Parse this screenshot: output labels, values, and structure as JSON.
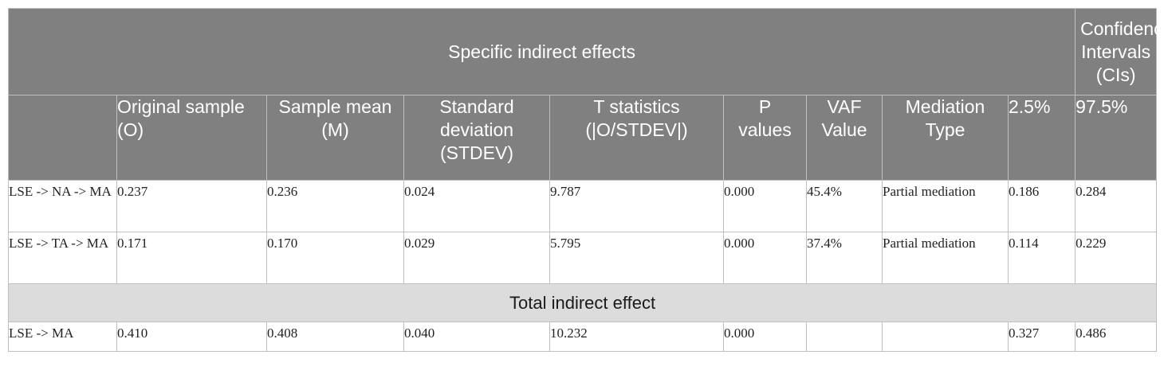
{
  "table": {
    "group_header": "Specific indirect effects",
    "ci_header": "Confidence Intervals (CIs)",
    "columns": [
      "",
      "Original sample (O)",
      "Sample mean (M)",
      "Standard deviation (STDEV)",
      "T statistics (|O/STDEV|)",
      "P values",
      "VAF Value",
      "Mediation Type",
      "2.5%",
      "97.5%"
    ],
    "rows": [
      [
        "LSE -> NA -> MA",
        "0.237",
        "0.236",
        "0.024",
        "9.787",
        "0.000",
        "45.4%",
        "Partial mediation",
        "0.186",
        "0.284"
      ],
      [
        "LSE -> TA -> MA",
        "0.171",
        "0.170",
        "0.029",
        "5.795",
        "0.000",
        "37.4%",
        "Partial mediation",
        "0.114",
        "0.229"
      ]
    ],
    "section_label": "Total indirect effect",
    "total_row": [
      "LSE -> MA",
      "0.410",
      "0.408",
      "0.040",
      "10.232",
      "0.000",
      "",
      "",
      "0.327",
      "0.486"
    ]
  },
  "colors": {
    "header_bg": "#808080",
    "section_bg": "#dcdcdc",
    "border": "#bfbfbf"
  }
}
